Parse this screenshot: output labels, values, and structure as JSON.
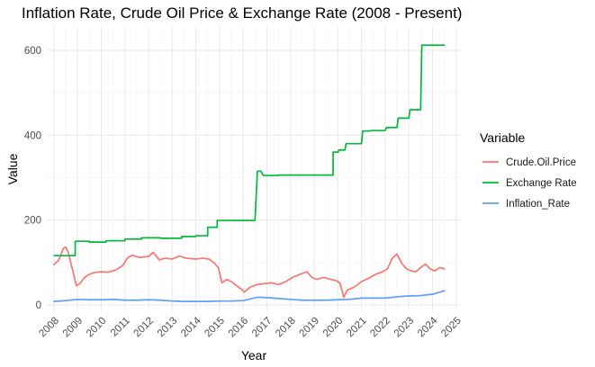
{
  "chart_data": {
    "type": "line",
    "title": "Inflation Rate, Crude Oil Price & Exchange Rate (2008 - Present)",
    "xlabel": "Year",
    "ylabel": "Value",
    "xlim": [
      2007.7,
      2025.2
    ],
    "ylim": [
      -15,
      655
    ],
    "x_ticks": [
      2008,
      2009,
      2010,
      2011,
      2012,
      2013,
      2014,
      2015,
      2016,
      2017,
      2018,
      2019,
      2020,
      2021,
      2022,
      2023,
      2024,
      2025
    ],
    "y_ticks": [
      0,
      200,
      400,
      600
    ],
    "grid": true,
    "legend_title": "Variable",
    "legend_position": "right",
    "series": [
      {
        "name": "Crude.Oil.Price",
        "color": "#F8766D",
        "x": [
          2008.0,
          2008.2,
          2008.4,
          2008.5,
          2008.6,
          2008.8,
          2008.95,
          2009.1,
          2009.3,
          2009.5,
          2009.7,
          2010.0,
          2010.3,
          2010.6,
          2010.9,
          2011.1,
          2011.3,
          2011.6,
          2012.0,
          2012.2,
          2012.45,
          2012.7,
          2013.0,
          2013.3,
          2013.6,
          2014.0,
          2014.3,
          2014.55,
          2014.75,
          2014.95,
          2015.1,
          2015.3,
          2015.5,
          2015.7,
          2015.9,
          2016.05,
          2016.3,
          2016.6,
          2016.9,
          2017.2,
          2017.5,
          2017.8,
          2018.1,
          2018.4,
          2018.7,
          2018.9,
          2019.1,
          2019.4,
          2019.7,
          2019.95,
          2020.1,
          2020.25,
          2020.4,
          2020.7,
          2021.0,
          2021.3,
          2021.6,
          2021.9,
          2022.1,
          2022.3,
          2022.5,
          2022.7,
          2022.9,
          2023.1,
          2023.3,
          2023.5,
          2023.7,
          2023.9,
          2024.1,
          2024.3,
          2024.5
        ],
        "values": [
          95,
          105,
          133,
          136,
          125,
          80,
          45,
          50,
          65,
          72,
          76,
          78,
          77,
          82,
          92,
          110,
          117,
          112,
          114,
          124,
          106,
          110,
          108,
          115,
          110,
          108,
          110,
          108,
          100,
          88,
          52,
          60,
          55,
          46,
          38,
          30,
          42,
          48,
          50,
          52,
          48,
          55,
          65,
          72,
          78,
          65,
          60,
          65,
          60,
          57,
          50,
          18,
          35,
          42,
          55,
          63,
          72,
          78,
          85,
          110,
          120,
          98,
          85,
          80,
          78,
          88,
          96,
          85,
          80,
          88,
          85
        ]
      },
      {
        "name": "Exchange Rate",
        "color": "#00BA38",
        "x": [
          2008.0,
          2008.9,
          2008.9,
          2009.5,
          2009.5,
          2010.2,
          2010.2,
          2011.0,
          2011.0,
          2011.7,
          2011.7,
          2012.5,
          2012.5,
          2013.4,
          2013.4,
          2014.0,
          2014.0,
          2014.5,
          2014.5,
          2014.9,
          2014.9,
          2016.5,
          2016.6,
          2016.75,
          2016.85,
          2017.5,
          2017.5,
          2019.8,
          2019.8,
          2020.0,
          2020.05,
          2020.3,
          2020.35,
          2021.0,
          2021.05,
          2021.4,
          2021.45,
          2022.0,
          2022.05,
          2022.5,
          2022.55,
          2023.0,
          2023.05,
          2023.5,
          2023.55,
          2024.5
        ],
        "values": [
          116,
          116,
          150,
          150,
          148,
          148,
          151,
          151,
          155,
          155,
          158,
          158,
          157,
          157,
          161,
          161,
          163,
          163,
          183,
          183,
          199,
          199,
          315,
          315,
          305,
          305,
          306,
          306,
          360,
          360,
          365,
          365,
          380,
          380,
          410,
          410,
          411,
          411,
          418,
          418,
          440,
          440,
          460,
          460,
          612,
          612
        ]
      },
      {
        "name": "Inflation_Rate",
        "color": "#619CFF",
        "x": [
          2008.0,
          2008.5,
          2009.0,
          2009.5,
          2010.0,
          2010.5,
          2011.0,
          2011.5,
          2012.0,
          2012.5,
          2013.0,
          2013.5,
          2014.0,
          2014.5,
          2015.0,
          2015.5,
          2016.0,
          2016.3,
          2016.6,
          2017.0,
          2017.5,
          2018.0,
          2018.5,
          2019.0,
          2019.5,
          2020.0,
          2020.5,
          2021.0,
          2021.5,
          2022.0,
          2022.5,
          2023.0,
          2023.5,
          2024.0,
          2024.3,
          2024.5
        ],
        "values": [
          8,
          10,
          13,
          12,
          12,
          13,
          11,
          11,
          12,
          11,
          9,
          8,
          8,
          8,
          9,
          9,
          10,
          14,
          18,
          17,
          15,
          13,
          11,
          11,
          11,
          12,
          13,
          16,
          16,
          16,
          19,
          21,
          22,
          25,
          30,
          33
        ]
      }
    ]
  }
}
